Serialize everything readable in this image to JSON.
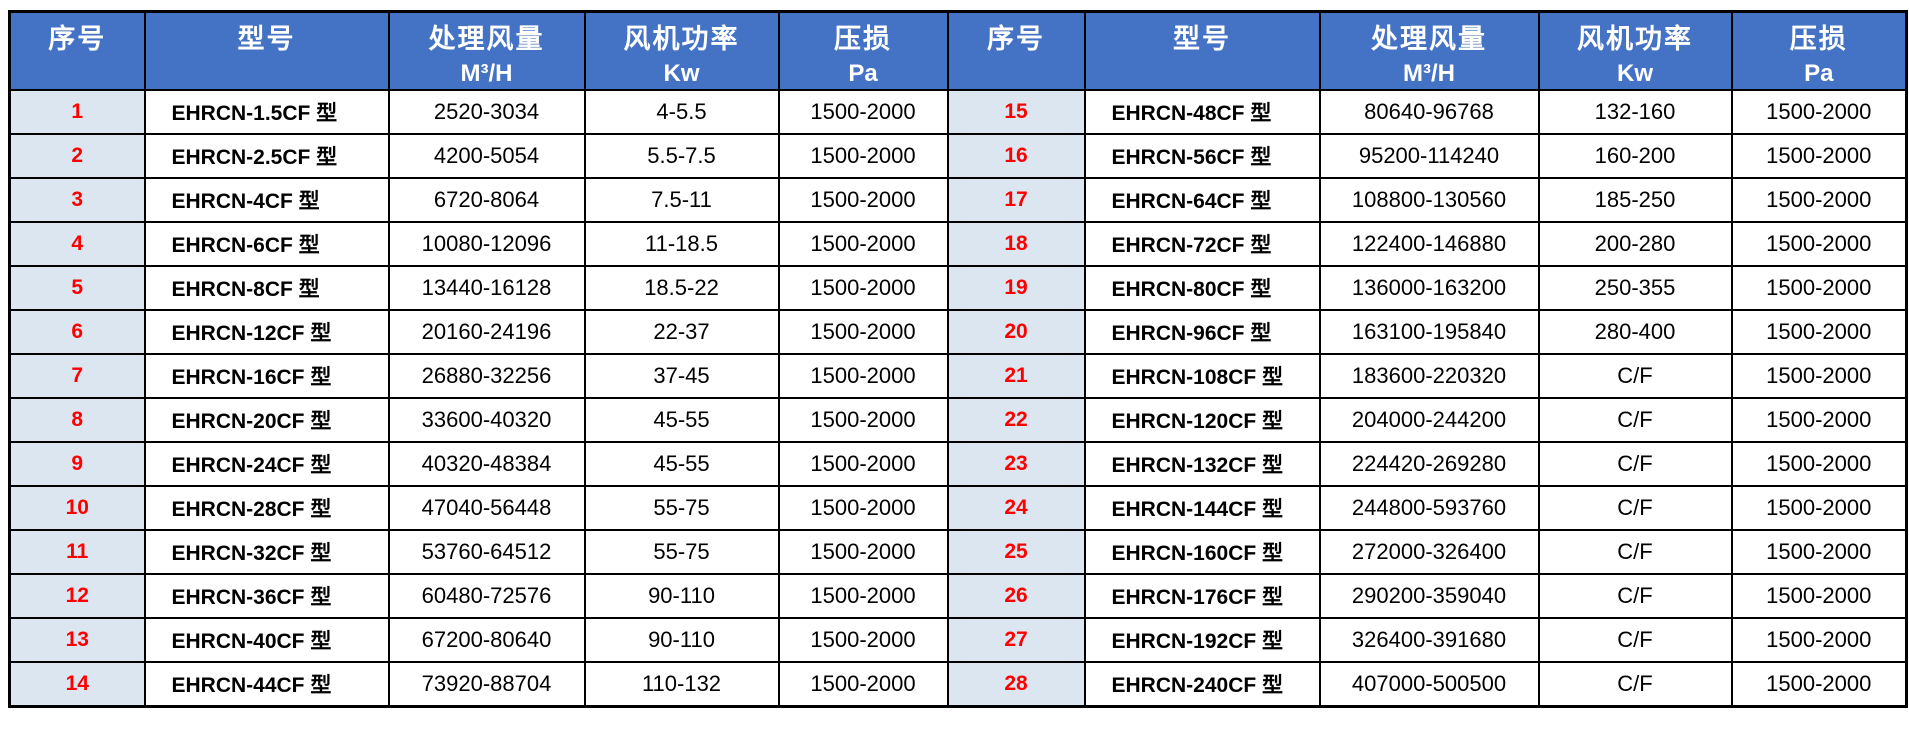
{
  "colors": {
    "header_bg": "#4472C4",
    "header_text": "#FFFFFF",
    "index_bg": "#DCE6F1",
    "index_text": "#FF0000",
    "cell_bg": "#FFFFFF",
    "cell_text": "#000000",
    "border": "#000000"
  },
  "table": {
    "columns": [
      {
        "key": "no",
        "label": "序号",
        "unit": ""
      },
      {
        "key": "model",
        "label": "型号",
        "unit": ""
      },
      {
        "key": "airflow",
        "label": "处理风量",
        "unit": "M³/H"
      },
      {
        "key": "power",
        "label": "风机功率",
        "unit": "Kw"
      },
      {
        "key": "pressure",
        "label": "压损",
        "unit": "Pa"
      }
    ],
    "left_rows": [
      {
        "no": "1",
        "model": "EHRCN-1.5CF 型",
        "airflow": "2520-3034",
        "power": "4-5.5",
        "pressure": "1500-2000"
      },
      {
        "no": "2",
        "model": "EHRCN-2.5CF 型",
        "airflow": "4200-5054",
        "power": "5.5-7.5",
        "pressure": "1500-2000"
      },
      {
        "no": "3",
        "model": "EHRCN-4CF 型",
        "airflow": "6720-8064",
        "power": "7.5-11",
        "pressure": "1500-2000"
      },
      {
        "no": "4",
        "model": "EHRCN-6CF 型",
        "airflow": "10080-12096",
        "power": "11-18.5",
        "pressure": "1500-2000"
      },
      {
        "no": "5",
        "model": "EHRCN-8CF 型",
        "airflow": "13440-16128",
        "power": "18.5-22",
        "pressure": "1500-2000"
      },
      {
        "no": "6",
        "model": "EHRCN-12CF 型",
        "airflow": "20160-24196",
        "power": "22-37",
        "pressure": "1500-2000"
      },
      {
        "no": "7",
        "model": "EHRCN-16CF 型",
        "airflow": "26880-32256",
        "power": "37-45",
        "pressure": "1500-2000"
      },
      {
        "no": "8",
        "model": "EHRCN-20CF 型",
        "airflow": "33600-40320",
        "power": "45-55",
        "pressure": "1500-2000"
      },
      {
        "no": "9",
        "model": "EHRCN-24CF 型",
        "airflow": "40320-48384",
        "power": "45-55",
        "pressure": "1500-2000"
      },
      {
        "no": "10",
        "model": "EHRCN-28CF 型",
        "airflow": "47040-56448",
        "power": "55-75",
        "pressure": "1500-2000"
      },
      {
        "no": "11",
        "model": "EHRCN-32CF 型",
        "airflow": "53760-64512",
        "power": "55-75",
        "pressure": "1500-2000"
      },
      {
        "no": "12",
        "model": "EHRCN-36CF 型",
        "airflow": "60480-72576",
        "power": "90-110",
        "pressure": "1500-2000"
      },
      {
        "no": "13",
        "model": "EHRCN-40CF 型",
        "airflow": "67200-80640",
        "power": "90-110",
        "pressure": "1500-2000"
      },
      {
        "no": "14",
        "model": "EHRCN-44CF 型",
        "airflow": "73920-88704",
        "power": "110-132",
        "pressure": "1500-2000"
      }
    ],
    "right_rows": [
      {
        "no": "15",
        "model": "EHRCN-48CF 型",
        "airflow": "80640-96768",
        "power": "132-160",
        "pressure": "1500-2000"
      },
      {
        "no": "16",
        "model": "EHRCN-56CF 型",
        "airflow": "95200-114240",
        "power": "160-200",
        "pressure": "1500-2000"
      },
      {
        "no": "17",
        "model": "EHRCN-64CF 型",
        "airflow": "108800-130560",
        "power": "185-250",
        "pressure": "1500-2000"
      },
      {
        "no": "18",
        "model": "EHRCN-72CF 型",
        "airflow": "122400-146880",
        "power": "200-280",
        "pressure": "1500-2000"
      },
      {
        "no": "19",
        "model": "EHRCN-80CF 型",
        "airflow": "136000-163200",
        "power": "250-355",
        "pressure": "1500-2000"
      },
      {
        "no": "20",
        "model": "EHRCN-96CF 型",
        "airflow": "163100-195840",
        "power": "280-400",
        "pressure": "1500-2000"
      },
      {
        "no": "21",
        "model": "EHRCN-108CF 型",
        "airflow": "183600-220320",
        "power": "C/F",
        "pressure": "1500-2000"
      },
      {
        "no": "22",
        "model": "EHRCN-120CF 型",
        "airflow": "204000-244200",
        "power": "C/F",
        "pressure": "1500-2000"
      },
      {
        "no": "23",
        "model": "EHRCN-132CF 型",
        "airflow": "224420-269280",
        "power": "C/F",
        "pressure": "1500-2000"
      },
      {
        "no": "24",
        "model": "EHRCN-144CF 型",
        "airflow": "244800-593760",
        "power": "C/F",
        "pressure": "1500-2000"
      },
      {
        "no": "25",
        "model": "EHRCN-160CF 型",
        "airflow": "272000-326400",
        "power": "C/F",
        "pressure": "1500-2000"
      },
      {
        "no": "26",
        "model": "EHRCN-176CF 型",
        "airflow": "290200-359040",
        "power": "C/F",
        "pressure": "1500-2000"
      },
      {
        "no": "27",
        "model": "EHRCN-192CF 型",
        "airflow": "326400-391680",
        "power": "C/F",
        "pressure": "1500-2000"
      },
      {
        "no": "28",
        "model": "EHRCN-240CF 型",
        "airflow": "407000-500500",
        "power": "C/F",
        "pressure": "1500-2000"
      }
    ]
  }
}
